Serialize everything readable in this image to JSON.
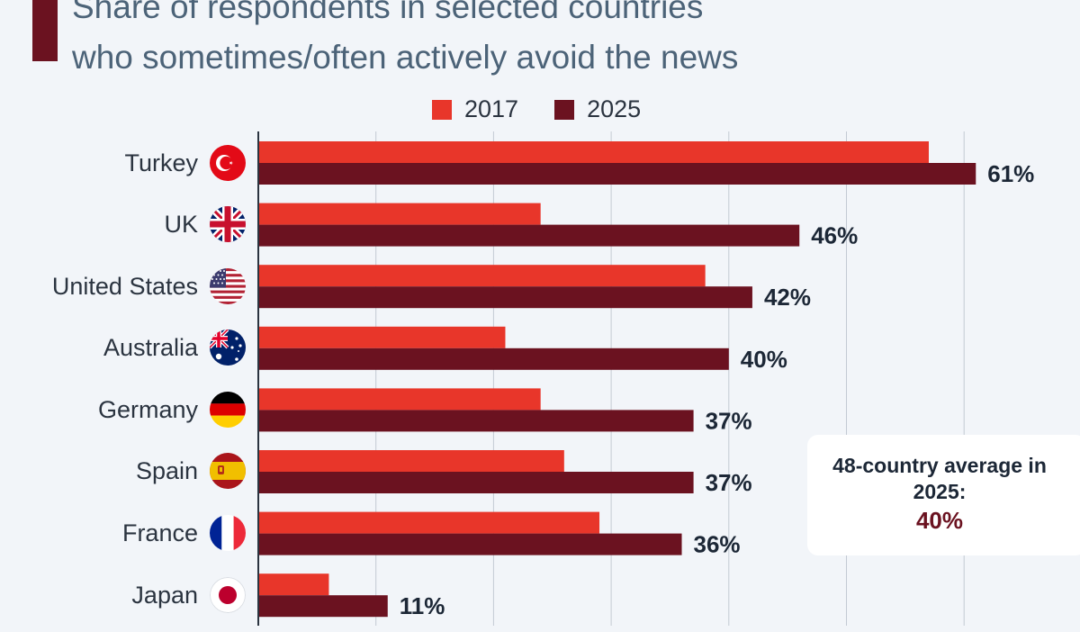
{
  "title_lines": [
    "Share of respondents in selected countries",
    "who sometimes/often actively avoid the news"
  ],
  "colors": {
    "series_2017": "#e8362a",
    "series_2025": "#6b1220",
    "grid": "#c3cad3",
    "axis": "#2b3440",
    "text": "#1c2736",
    "title": "#4c6378"
  },
  "legend": {
    "items": [
      "2017",
      "2025"
    ]
  },
  "annotation": {
    "text": "48-country average in 2025:",
    "value": "40%"
  },
  "chart_data": {
    "type": "bar",
    "orientation": "horizontal",
    "categories": [
      "Turkey",
      "UK",
      "United States",
      "Australia",
      "Germany",
      "Spain",
      "France",
      "Japan"
    ],
    "flag_icons": [
      "turkey-flag-icon",
      "uk-flag-icon",
      "us-flag-icon",
      "australia-flag-icon",
      "germany-flag-icon",
      "spain-flag-icon",
      "france-flag-icon",
      "japan-flag-icon"
    ],
    "series": [
      {
        "name": "2017",
        "values": [
          57,
          24,
          38,
          21,
          24,
          26,
          29,
          6
        ]
      },
      {
        "name": "2025",
        "values": [
          61,
          46,
          42,
          40,
          37,
          37,
          36,
          11
        ]
      }
    ],
    "data_labels": [
      "61%",
      "46%",
      "42%",
      "40%",
      "37%",
      "37%",
      "36%",
      "11%"
    ],
    "xlim": [
      0,
      70
    ],
    "grid": true
  }
}
